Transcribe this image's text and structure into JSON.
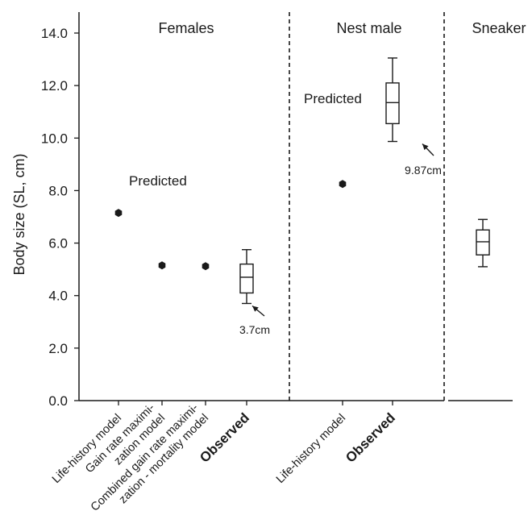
{
  "chart_data": {
    "type": "scatter",
    "ylabel": "Body size (SL, cm)",
    "ylim": [
      0,
      14.8
    ],
    "yticks": [
      "0.0",
      "2.0",
      "4.0",
      "6.0",
      "8.0",
      "10.0",
      "12.0",
      "14.0"
    ],
    "grid": false,
    "panels": [
      {
        "label": "Females"
      },
      {
        "label": "Nest male"
      },
      {
        "label": "Sneaker"
      }
    ],
    "categories": [
      {
        "label": "Life-history model",
        "bold": false,
        "lines": [
          "Life-history model"
        ]
      },
      {
        "label": "Gain rate maximization model",
        "bold": false,
        "lines": [
          "Gain rate maximi-",
          "zation model"
        ]
      },
      {
        "label": "Combined gain rate maximization - mortality model",
        "bold": false,
        "lines": [
          "Combined gain rate maximi-",
          "zation - mortality  model"
        ]
      },
      {
        "label": "Observed",
        "bold": true,
        "lines": [
          "Observed"
        ]
      },
      {
        "label": "Life-history model",
        "bold": false,
        "lines": [
          "Life-history model"
        ]
      },
      {
        "label": "Observed",
        "bold": true,
        "lines": [
          "Observed"
        ]
      }
    ],
    "series": [
      {
        "kind": "predicted",
        "points": [
          {
            "panel": "Females",
            "category": "Life-history model",
            "y": 7.15
          },
          {
            "panel": "Females",
            "category": "Gain rate maximization model",
            "y": 5.15
          },
          {
            "panel": "Females",
            "category": "Combined gain rate maximization - mortality model",
            "y": 5.12
          },
          {
            "panel": "Nest male",
            "category": "Life-history model",
            "y": 8.25
          }
        ]
      },
      {
        "kind": "observed",
        "boxes": [
          {
            "panel": "Females",
            "category": "Observed",
            "whisker_low": 3.7,
            "q1": 4.1,
            "median": 4.7,
            "q3": 5.2,
            "whisker_high": 5.75
          },
          {
            "panel": "Nest male",
            "category": "Observed",
            "whisker_low": 9.87,
            "q1": 10.55,
            "median": 11.35,
            "q3": 12.1,
            "whisker_high": 13.05
          },
          {
            "panel": "Sneaker",
            "category": "",
            "whisker_low": 5.1,
            "q1": 5.55,
            "median": 6.05,
            "q3": 6.5,
            "whisker_high": 6.9
          }
        ]
      }
    ],
    "annotations": [
      {
        "id": "predicted-females",
        "text": "Predicted"
      },
      {
        "id": "predicted-nest",
        "text": "Predicted"
      },
      {
        "id": "min-females",
        "text": "3.7cm"
      },
      {
        "id": "min-nest",
        "text": "9.87cm"
      }
    ]
  }
}
